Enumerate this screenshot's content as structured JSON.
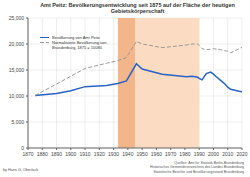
{
  "chart_data": {
    "type": "line",
    "title": "Amt Peitz: Bevölkerungsentwicklung seit 1875 auf der Fläche der heutigen Gebietskörperschaft",
    "x": [
      1875,
      1890,
      1900,
      1910,
      1925,
      1933,
      1939,
      1946,
      1950,
      1964,
      1971,
      1981,
      1985,
      1989,
      1990,
      1992,
      1995,
      1998,
      2000,
      2002,
      2005,
      2008,
      2010,
      2012,
      2015,
      2018,
      2020
    ],
    "series": [
      {
        "name": "Bevölkerung von Amt Peitz",
        "color": "#2a62c4",
        "line_style": "solid",
        "marker": "none",
        "values": [
          10100,
          10500,
          11000,
          11800,
          12000,
          12400,
          12900,
          16200,
          15200,
          14200,
          14000,
          13700,
          13800,
          13600,
          13400,
          13100,
          14300,
          14600,
          14200,
          13700,
          13000,
          12300,
          11700,
          11300,
          11100,
          10900,
          10800
        ]
      },
      {
        "name": "Normalisierte Bevölkerung von Brandenburg, 1875 = 10080",
        "color": "#999999",
        "line_style": "dashed",
        "marker": "none",
        "values": [
          10100,
          12300,
          13800,
          15300,
          16300,
          16800,
          17400,
          20500,
          20000,
          19300,
          19500,
          19800,
          20000,
          20000,
          19700,
          19100,
          18900,
          19000,
          19100,
          19000,
          18900,
          18700,
          18600,
          18300,
          18700,
          19100,
          19400
        ]
      }
    ],
    "periods": [
      {
        "x1": 1933,
        "x2": 1945,
        "color": "#f3b58a"
      },
      {
        "x1": 1945,
        "x2": 1990,
        "color": "#fbdcc2"
      }
    ],
    "xlim": [
      1870,
      2020
    ],
    "xticks": [
      1870,
      1880,
      1890,
      1900,
      1910,
      1920,
      1930,
      1940,
      1950,
      1960,
      1970,
      1980,
      1990,
      2000,
      2010,
      2020
    ],
    "ylim": [
      0,
      25000
    ],
    "yticks": [
      0,
      {
        "value": 5000,
        "label": "5,000"
      },
      {
        "value": 10000,
        "label": "10,000"
      },
      {
        "value": 15000,
        "label": "15,000"
      },
      {
        "value": 20000,
        "label": "20,000"
      },
      {
        "value": 25000,
        "label": "25,000"
      }
    ],
    "grid": true,
    "credit": "by Hans G. Oberlack",
    "source": [
      "Quellen: Amt für Statistik Berlin-Brandenburg",
      "Historisches Gemeindeverzeichnis des Landes Brandenburg",
      "Statistische Berichte und Bevölkerungsstand Brandenburg"
    ]
  }
}
